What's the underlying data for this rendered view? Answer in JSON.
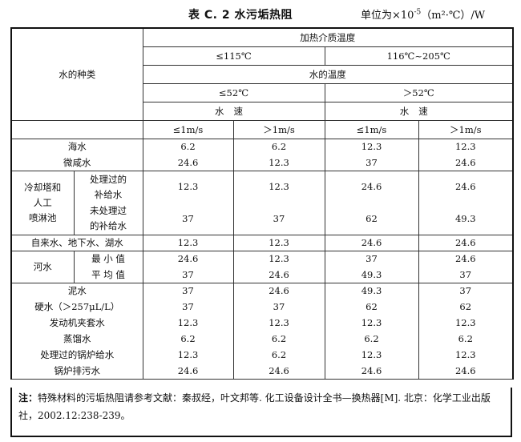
{
  "title": "表 C. 2  水污垢热阻",
  "unit_prefix": "单位为×10",
  "unit_exp": "-5",
  "unit_suffix": "（m²·℃）/W",
  "header": {
    "water_type": "水的种类",
    "heating_medium_temp": "加热介质温度",
    "temp_low": "≤115℃",
    "temp_high": "116℃~205℃",
    "water_temp": "水的温度",
    "wt_low": "≤52℃",
    "wt_high": "＞52℃",
    "velocity": "水速",
    "v_low": "≤1m/s",
    "v_high": "＞1m/s"
  },
  "groups": [
    {
      "labels": [
        "海水",
        "微咸水"
      ],
      "values": [
        [
          "6.2",
          "6.2",
          "12.3",
          "12.3"
        ],
        [
          "24.6",
          "12.3",
          "37",
          "24.6"
        ]
      ]
    },
    {
      "category": [
        "冷却塔和",
        "人工",
        "喷淋池"
      ],
      "sub": [
        {
          "label": [
            "处理过的",
            "补给水"
          ],
          "values": [
            "12.3",
            "12.3",
            "24.6",
            "24.6"
          ]
        },
        {
          "label": [
            "未处理过",
            "的补给水"
          ],
          "values": [
            "37",
            "37",
            "62",
            "49.3"
          ]
        }
      ]
    },
    {
      "labels": [
        "自来水、地下水、湖水"
      ],
      "values": [
        [
          "12.3",
          "12.3",
          "24.6",
          "24.6"
        ]
      ]
    },
    {
      "category": [
        "河水"
      ],
      "sub": [
        {
          "label": [
            "最 小 值"
          ],
          "values": [
            "24.6",
            "12.3",
            "37",
            "24.6"
          ]
        },
        {
          "label": [
            "平 均 值"
          ],
          "values": [
            "37",
            "24.6",
            "49.3",
            "37"
          ]
        }
      ]
    },
    {
      "labels": [
        "泥水",
        "硬水（＞257μL/L）",
        "发动机夹套水",
        "蒸馏水",
        "处理过的锅炉给水",
        "锅炉排污水"
      ],
      "values": [
        [
          "37",
          "24.6",
          "49.3",
          "37"
        ],
        [
          "37",
          "37",
          "62",
          "62"
        ],
        [
          "12.3",
          "12.3",
          "12.3",
          "12.3"
        ],
        [
          "6.2",
          "6.2",
          "6.2",
          "6.2"
        ],
        [
          "12.3",
          "6.2",
          "12.3",
          "12.3"
        ],
        [
          "24.6",
          "24.6",
          "24.6",
          "24.6"
        ]
      ]
    }
  ],
  "note": {
    "prefix": "注：",
    "text": "特殊材料的污垢热阻请参考文献：秦叔经，叶文邦等. 化工设备设计全书—换热器[M]. 北京：化学工业出版社，2002.12:238-239。"
  }
}
